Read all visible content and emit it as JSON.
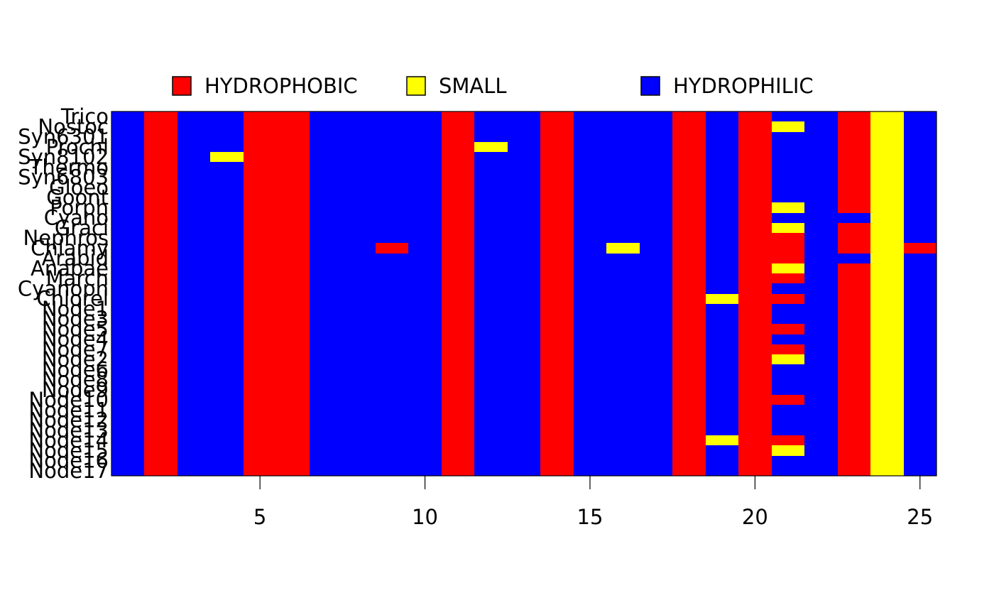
{
  "chart_data": {
    "type": "heatmap",
    "title": "",
    "xlabel": "",
    "ylabel": "",
    "xlim": [
      0.5,
      25.5
    ],
    "x_ticks": [
      "5",
      "10",
      "15",
      "20",
      "25"
    ],
    "legend": {
      "placement": "top",
      "items": [
        {
          "code": "R",
          "label": "HYDROPHOBIC",
          "color": "#ff0000"
        },
        {
          "code": "Y",
          "label": "SMALL",
          "color": "#ffff00"
        },
        {
          "code": "B",
          "label": "HYDROPHILIC",
          "color": "#0000ff"
        }
      ]
    },
    "colors": {
      "R": "#ff0000",
      "Y": "#ffff00",
      "B": "#0000ff"
    },
    "rows": [
      {
        "label": "Trico",
        "cells": "BBRBBRRBBBBRBBRBBBRBRBBRYB"
      },
      {
        "label": "Nostoc",
        "cells": "BBRBBRRBBBBRBBRBBBRBRYBRYB"
      },
      {
        "label": "Syn6301",
        "cells": "BBRBBRRBBBBRBBRBBBRBRBBRYB"
      },
      {
        "label": "Prochl",
        "cells": "BBRBBRRBBBBRYBRBBBRBRBBRYB"
      },
      {
        "label": "Syn8102",
        "cells": "BBRBYRRBBBBRBBRBBBRBRBBRYB"
      },
      {
        "label": "Thermo",
        "cells": "BBRBBRRBBBBRBBRBBBRBRBBRYB"
      },
      {
        "label": "Syn6803",
        "cells": "BBRBBRRBBBBRBBRBBBRBRBBRYB"
      },
      {
        "label": "Gloeo",
        "cells": "BBRBBRRBBBBRBBRBBBRBRBBRYB"
      },
      {
        "label": "Goont",
        "cells": "BBRBBRRBBBBRBBRBBBRBRBBRYB"
      },
      {
        "label": "Porph",
        "cells": "BBRBBRRBBBBRBBRBBBRBRYBRYB"
      },
      {
        "label": "Cyano",
        "cells": "BBRBBRRBBBBRBBRBBBRBRBBBYB"
      },
      {
        "label": "Graci",
        "cells": "BBRBBRRBBBBRBBRBBBRBRYBRYB"
      },
      {
        "label": "Nephros",
        "cells": "BBRBBRRBBBBRBBRBBBRBRRBRYB"
      },
      {
        "label": "Chlamy",
        "cells": "BBRBBRRBBRBRBBRBYBRBRRBRYR"
      },
      {
        "label": "Arabid",
        "cells": "BBRBBRRBBBBRBBRBBBRBRRBBYB"
      },
      {
        "label": "Anabae",
        "cells": "BBRBBRRBBBBRBBRBBBRBRYBRYB"
      },
      {
        "label": "March",
        "cells": "BBRBBRRBBBBRBBRBBBRBRRBRYB"
      },
      {
        "label": "Cyanoph",
        "cells": "BBRBBRRBBBBRBBRBBBRBRBBRYB"
      },
      {
        "label": "Chlorel",
        "cells": "BBRBBRRBBBBRBBRBBBRYRRBRYB"
      },
      {
        "label": "Node1",
        "cells": "BBRBBRRBBBBRBBRBBBRBRBBRYB"
      },
      {
        "label": "Node3",
        "cells": "BBRBBRRBBBBRBBRBBBRBRBBRYB"
      },
      {
        "label": "Node5",
        "cells": "BBRBBRRBBBBRBBRBBBRBRRBRYB"
      },
      {
        "label": "Node4",
        "cells": "BBRBBRRBBBBRBBRBBBRBRBBRYB"
      },
      {
        "label": "Node7",
        "cells": "BBRBBRRBBBBRBBRBBBRBRRBRYB"
      },
      {
        "label": "Node2",
        "cells": "BBRBBRRBBBBRBBRBBBRBRYBRYB"
      },
      {
        "label": "Node6",
        "cells": "BBRBBRRBBBBRBBRBBBRBRBBRYB"
      },
      {
        "label": "Node8",
        "cells": "BBRBBRRBBBBRBBRBBBRBRBBRYB"
      },
      {
        "label": "Node9",
        "cells": "BBRBBRRBBBBRBBRBBBRBRBBRYB"
      },
      {
        "label": "Node10",
        "cells": "BBRBBRRBBBBRBBRBBBRBRRBRYB"
      },
      {
        "label": "Node11",
        "cells": "BBRBBRRBBBBRBBRBBBRBRBBRYB"
      },
      {
        "label": "Node12",
        "cells": "BBRBBRRBBBBRBBRBBBRBRBBRYB"
      },
      {
        "label": "Node13",
        "cells": "BBRBBRRBBBBRBBRBBBRBRBBRYB"
      },
      {
        "label": "Node14",
        "cells": "BBRBBRRBBBBRBBRBBBRYRRBRYB"
      },
      {
        "label": "Node15",
        "cells": "BBRBBRRBBBBRBBRBBBRBRYBRYB"
      },
      {
        "label": "Node16",
        "cells": "BBRBBRRBBBBRBBRBBBRBRBBRYB"
      },
      {
        "label": "Node17",
        "cells": "BBRBBRRBBBBRBBRBBBRBRBBRYB"
      }
    ]
  }
}
